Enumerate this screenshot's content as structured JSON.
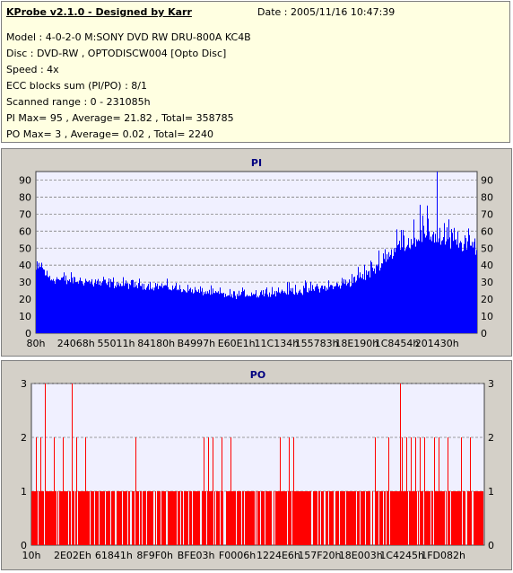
{
  "header": {
    "title": "KProbe v2.1.0 - Designed by Karr",
    "date": "Date : 2005/11/16 10:47:39",
    "lines": [
      "Model : 4-0-2-0 M:SONY     DVD RW DRU-800A  KC4B",
      "Disc : DVD-RW , OPTODISCW004 [Opto Disc]",
      "Speed : 4x",
      "ECC blocks sum (PI/PO) : 8/1",
      "Scanned range : 0 - 231085h",
      "PI Max= 95 , Average= 21.82 , Total= 358785",
      "PO Max= 3 , Average= 0.02 , Total= 2240"
    ]
  },
  "colors": {
    "pi": "#0000ff",
    "po": "#ff0000",
    "plot_bg": "#f0f0ff",
    "panel_bg": "#d4d0c8",
    "info_bg": "#ffffe1",
    "title": "#000080"
  },
  "chart_data": [
    {
      "type": "bar",
      "title": "PI",
      "ylim": [
        0,
        95
      ],
      "yticks": [
        0,
        10,
        20,
        30,
        40,
        50,
        60,
        70,
        80,
        90
      ],
      "xtick_labels": [
        "80h",
        "24068h",
        "55011h",
        "84180h",
        "B4997h",
        "E60E1h",
        "11C134h",
        "155783h",
        "18E190h",
        "1C8454h",
        "201430h"
      ],
      "series": [
        {
          "max": 95,
          "average": 21.82,
          "total": 358785
        }
      ],
      "profile_x_fraction": [
        0,
        0.01,
        0.03,
        0.1,
        0.2,
        0.3,
        0.38,
        0.45,
        0.55,
        0.62,
        0.68,
        0.72,
        0.76,
        0.8,
        0.84,
        0.88,
        0.92,
        0.96,
        1.0
      ],
      "profile_typical": [
        35,
        38,
        30,
        29,
        27,
        26,
        23,
        21,
        23,
        24,
        26,
        29,
        33,
        43,
        50,
        53,
        52,
        49,
        47
      ],
      "profile_peak": [
        44,
        45,
        38,
        36,
        33,
        31,
        28,
        26,
        30,
        31,
        33,
        38,
        46,
        60,
        72,
        82,
        75,
        65,
        62
      ],
      "peak_x_fraction": 0.91,
      "peak_value": 95
    },
    {
      "type": "bar",
      "title": "PO",
      "ylim": [
        0,
        3
      ],
      "yticks": [
        0,
        1,
        2,
        3
      ],
      "xtick_labels": [
        "10h",
        "2E02Eh",
        "61841h",
        "8F9F0h",
        "BFE03h",
        "F0006h",
        "1224E6h",
        "157F20h",
        "18E003h",
        "1C4245h",
        "1FD082h"
      ],
      "series": [
        {
          "max": 3,
          "average": 0.02,
          "total": 2240
        }
      ],
      "value_three_x_fraction": [
        0.03,
        0.09,
        0.815
      ],
      "value_two_x_fraction": [
        0.01,
        0.02,
        0.05,
        0.07,
        0.1,
        0.12,
        0.23,
        0.38,
        0.39,
        0.4,
        0.42,
        0.44,
        0.55,
        0.57,
        0.58,
        0.76,
        0.79,
        0.82,
        0.83,
        0.84,
        0.85,
        0.86,
        0.87,
        0.89,
        0.9,
        0.92,
        0.95,
        0.97
      ]
    }
  ]
}
